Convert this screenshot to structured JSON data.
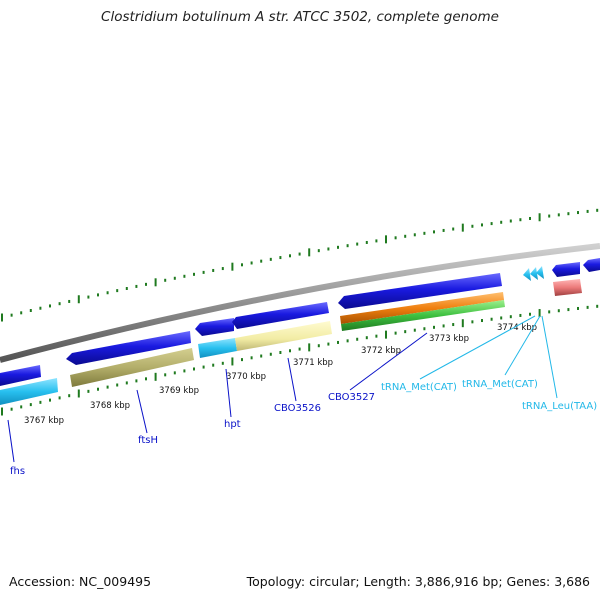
{
  "title": "Clostridium botulinum A str. ATCC 3502, complete genome",
  "footer": {
    "accession": "Accession: NC_009495",
    "topology": "Topology: circular; Length: 3,886,916 bp; Genes: 3,686"
  },
  "ticks": [
    "3767 kbp",
    "3768 kbp",
    "3769 kbp",
    "3770 kbp",
    "3771 kbp",
    "3772 kbp",
    "3773 kbp",
    "3774 kbp"
  ],
  "gene_labels": [
    "fhs",
    "ftsH",
    "hpt",
    "CBO3526",
    "CBO3527",
    "tRNA_Met(CAT)",
    "tRNA_Met(CAT)",
    "tRNA_Leu(TAA)"
  ],
  "colors": {
    "cds": "#1a1ae0",
    "rna": "#28c0ef",
    "backbone": "#8a8a8a",
    "tick": "#1f7a1f",
    "label_dark": "#0a12c8",
    "label_light": "#22b8e8"
  }
}
